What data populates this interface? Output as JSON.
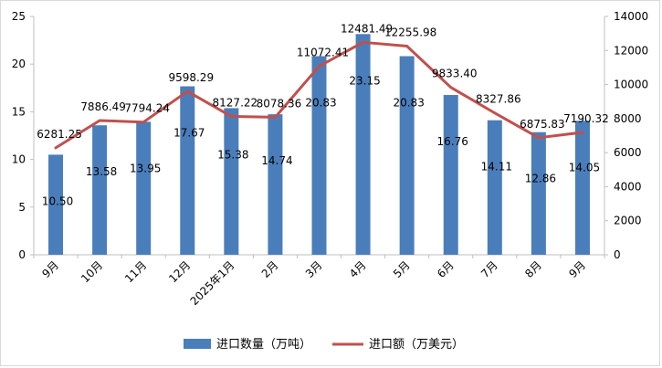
{
  "chart_data": {
    "type": "bar",
    "categories": [
      "9月",
      "10月",
      "11月",
      "12月",
      "2025年1月",
      "2月",
      "3月",
      "4月",
      "5月",
      "6月",
      "7月",
      "8月",
      "9月"
    ],
    "series": [
      {
        "name": "进口数量（万吨）",
        "type": "bar",
        "axis": "left",
        "color": "#4a7ebb",
        "values": [
          10.5,
          13.58,
          13.95,
          17.67,
          15.38,
          14.74,
          20.83,
          23.15,
          20.83,
          16.76,
          14.11,
          12.86,
          14.05
        ],
        "labels": [
          "10.50",
          "13.58",
          "13.95",
          "17.67",
          "15.38",
          "14.74",
          "20.83",
          "23.15",
          "20.83",
          "16.76",
          "14.11",
          "12.86",
          "14.05"
        ]
      },
      {
        "name": "进口额（万美元）",
        "type": "line",
        "axis": "right",
        "color": "#c0504d",
        "values": [
          6281.25,
          7886.49,
          7794.24,
          9598.29,
          8127.22,
          8078.36,
          11072.41,
          12481.49,
          12255.98,
          9833.4,
          8327.86,
          6875.83,
          7190.32
        ],
        "labels": [
          "6281.25",
          "7886.49",
          "7794.24",
          "9598.29",
          "8127.22",
          "8078.36",
          "11072.41",
          "12481.49",
          "12255.98",
          "9833.40",
          "8327.86",
          "6875.83",
          "7190.32"
        ]
      }
    ],
    "y_left": {
      "min": 0,
      "max": 25,
      "ticks": [
        "0",
        "5",
        "10",
        "15",
        "20",
        "25"
      ]
    },
    "y_right": {
      "min": 0,
      "max": 14000,
      "ticks": [
        "0",
        "2000",
        "4000",
        "6000",
        "8000",
        "10000",
        "12000",
        "14000"
      ]
    },
    "grid": false,
    "legend_position": "bottom"
  }
}
